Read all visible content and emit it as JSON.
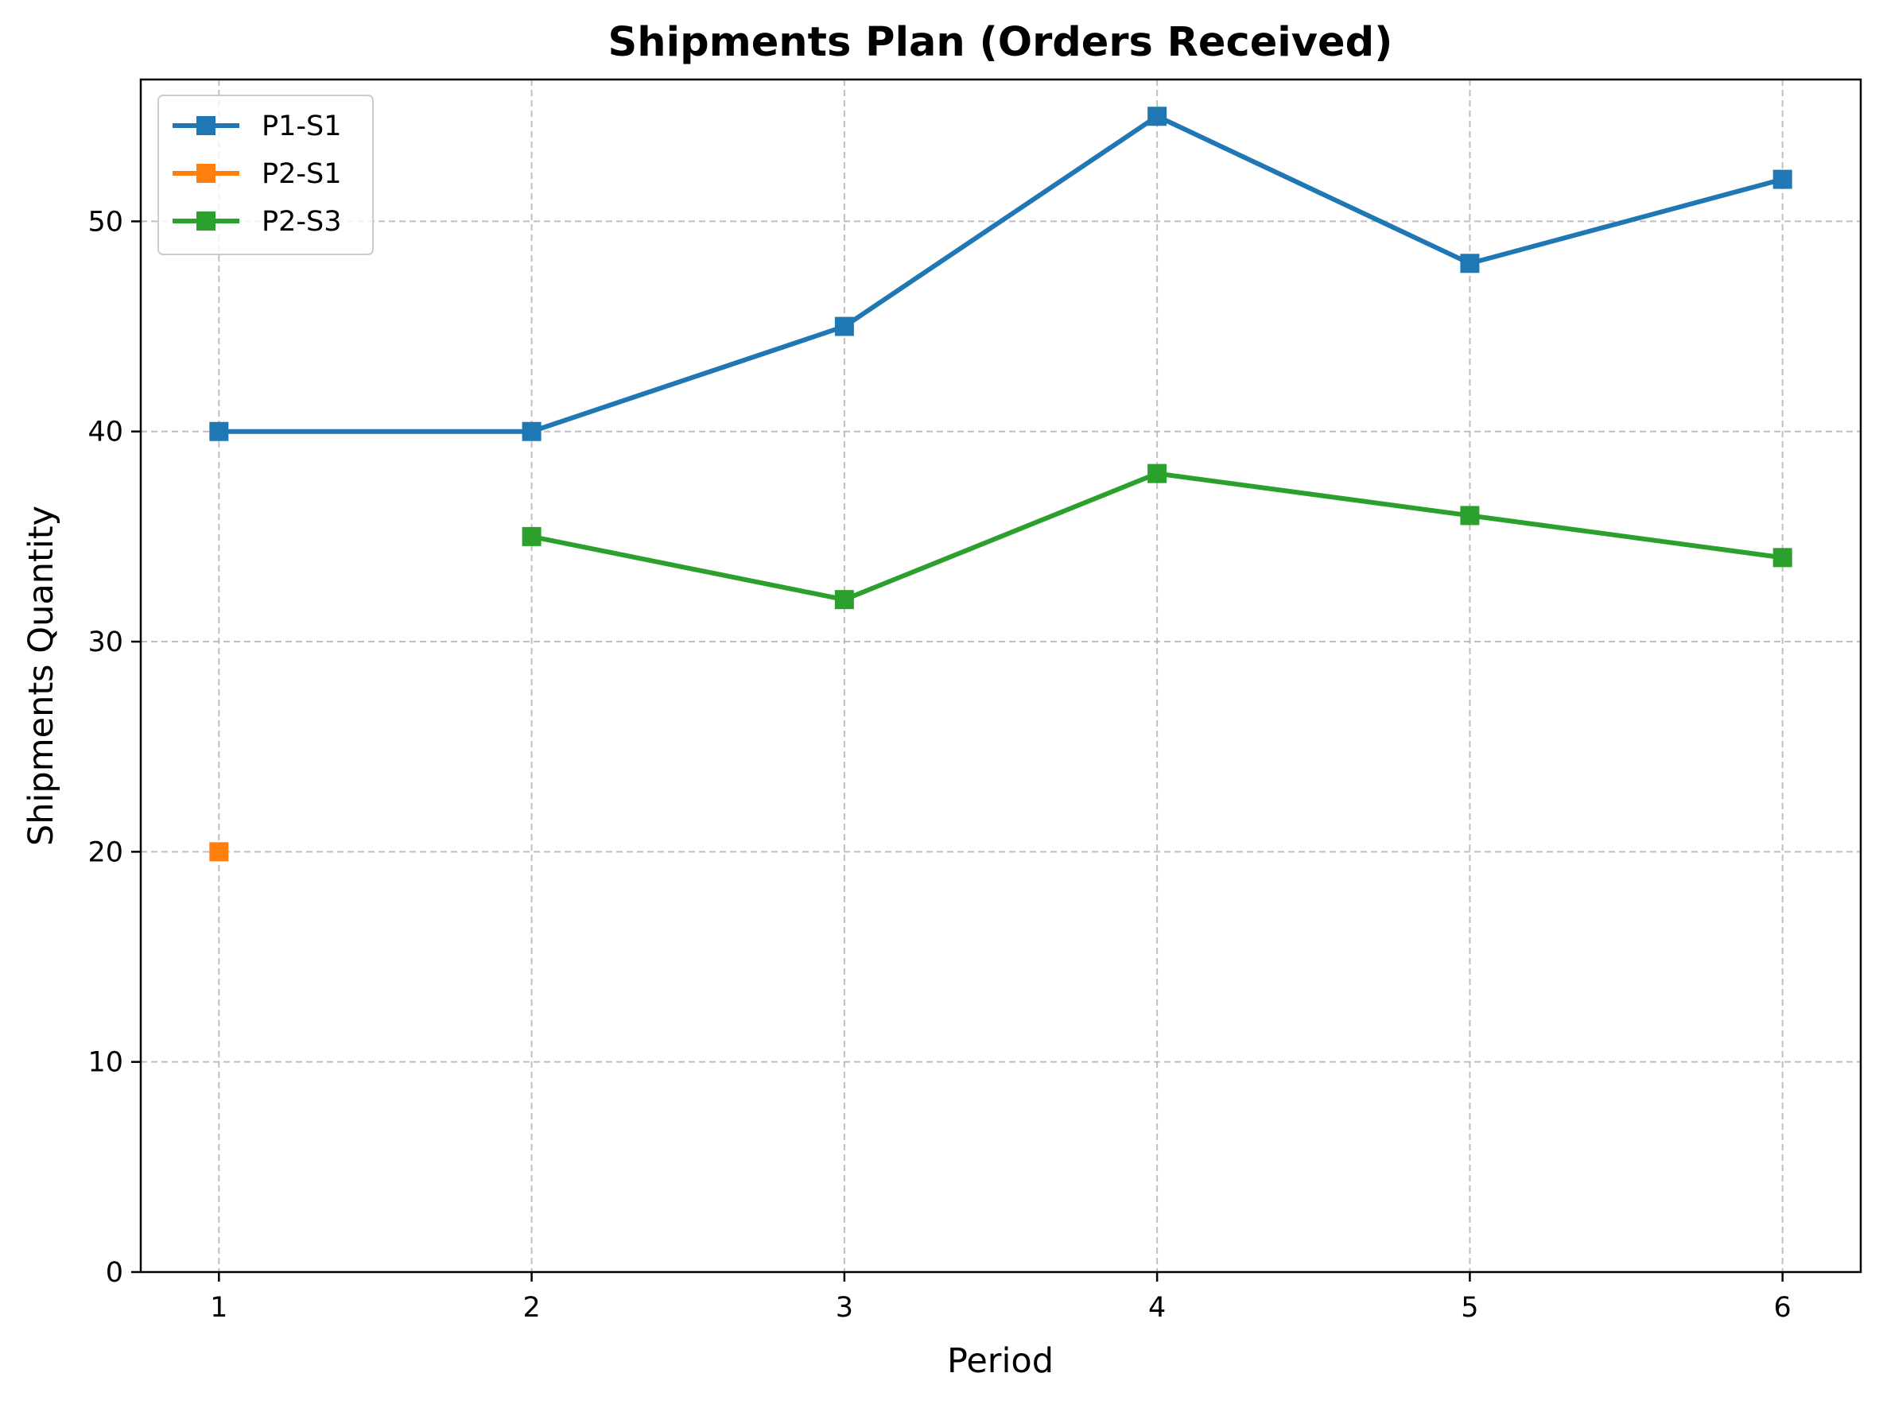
{
  "chart_data": {
    "type": "line",
    "title": "Shipments Plan (Orders Received)",
    "xlabel": "Period",
    "ylabel": "Shipments Quantity",
    "x_ticks": [
      1,
      2,
      3,
      4,
      5,
      6
    ],
    "y_ticks": [
      0,
      10,
      20,
      30,
      40,
      50
    ],
    "xlim": [
      0.75,
      6.25
    ],
    "ylim": [
      0,
      56.75
    ],
    "grid": true,
    "legend_position": "top-left",
    "marker": "square",
    "series": [
      {
        "name": "P1-S1",
        "color": "#1f77b4",
        "points": [
          {
            "x": 1,
            "y": 40
          },
          {
            "x": 2,
            "y": 40
          },
          {
            "x": 3,
            "y": 45
          },
          {
            "x": 4,
            "y": 55
          },
          {
            "x": 5,
            "y": 48
          },
          {
            "x": 6,
            "y": 52
          }
        ]
      },
      {
        "name": "P2-S1",
        "color": "#ff7f0e",
        "points": [
          {
            "x": 1,
            "y": 20
          }
        ]
      },
      {
        "name": "P2-S3",
        "color": "#2ca02c",
        "points": [
          {
            "x": 2,
            "y": 35
          },
          {
            "x": 3,
            "y": 32
          },
          {
            "x": 4,
            "y": 38
          },
          {
            "x": 5,
            "y": 36
          },
          {
            "x": 6,
            "y": 34
          }
        ]
      }
    ]
  }
}
